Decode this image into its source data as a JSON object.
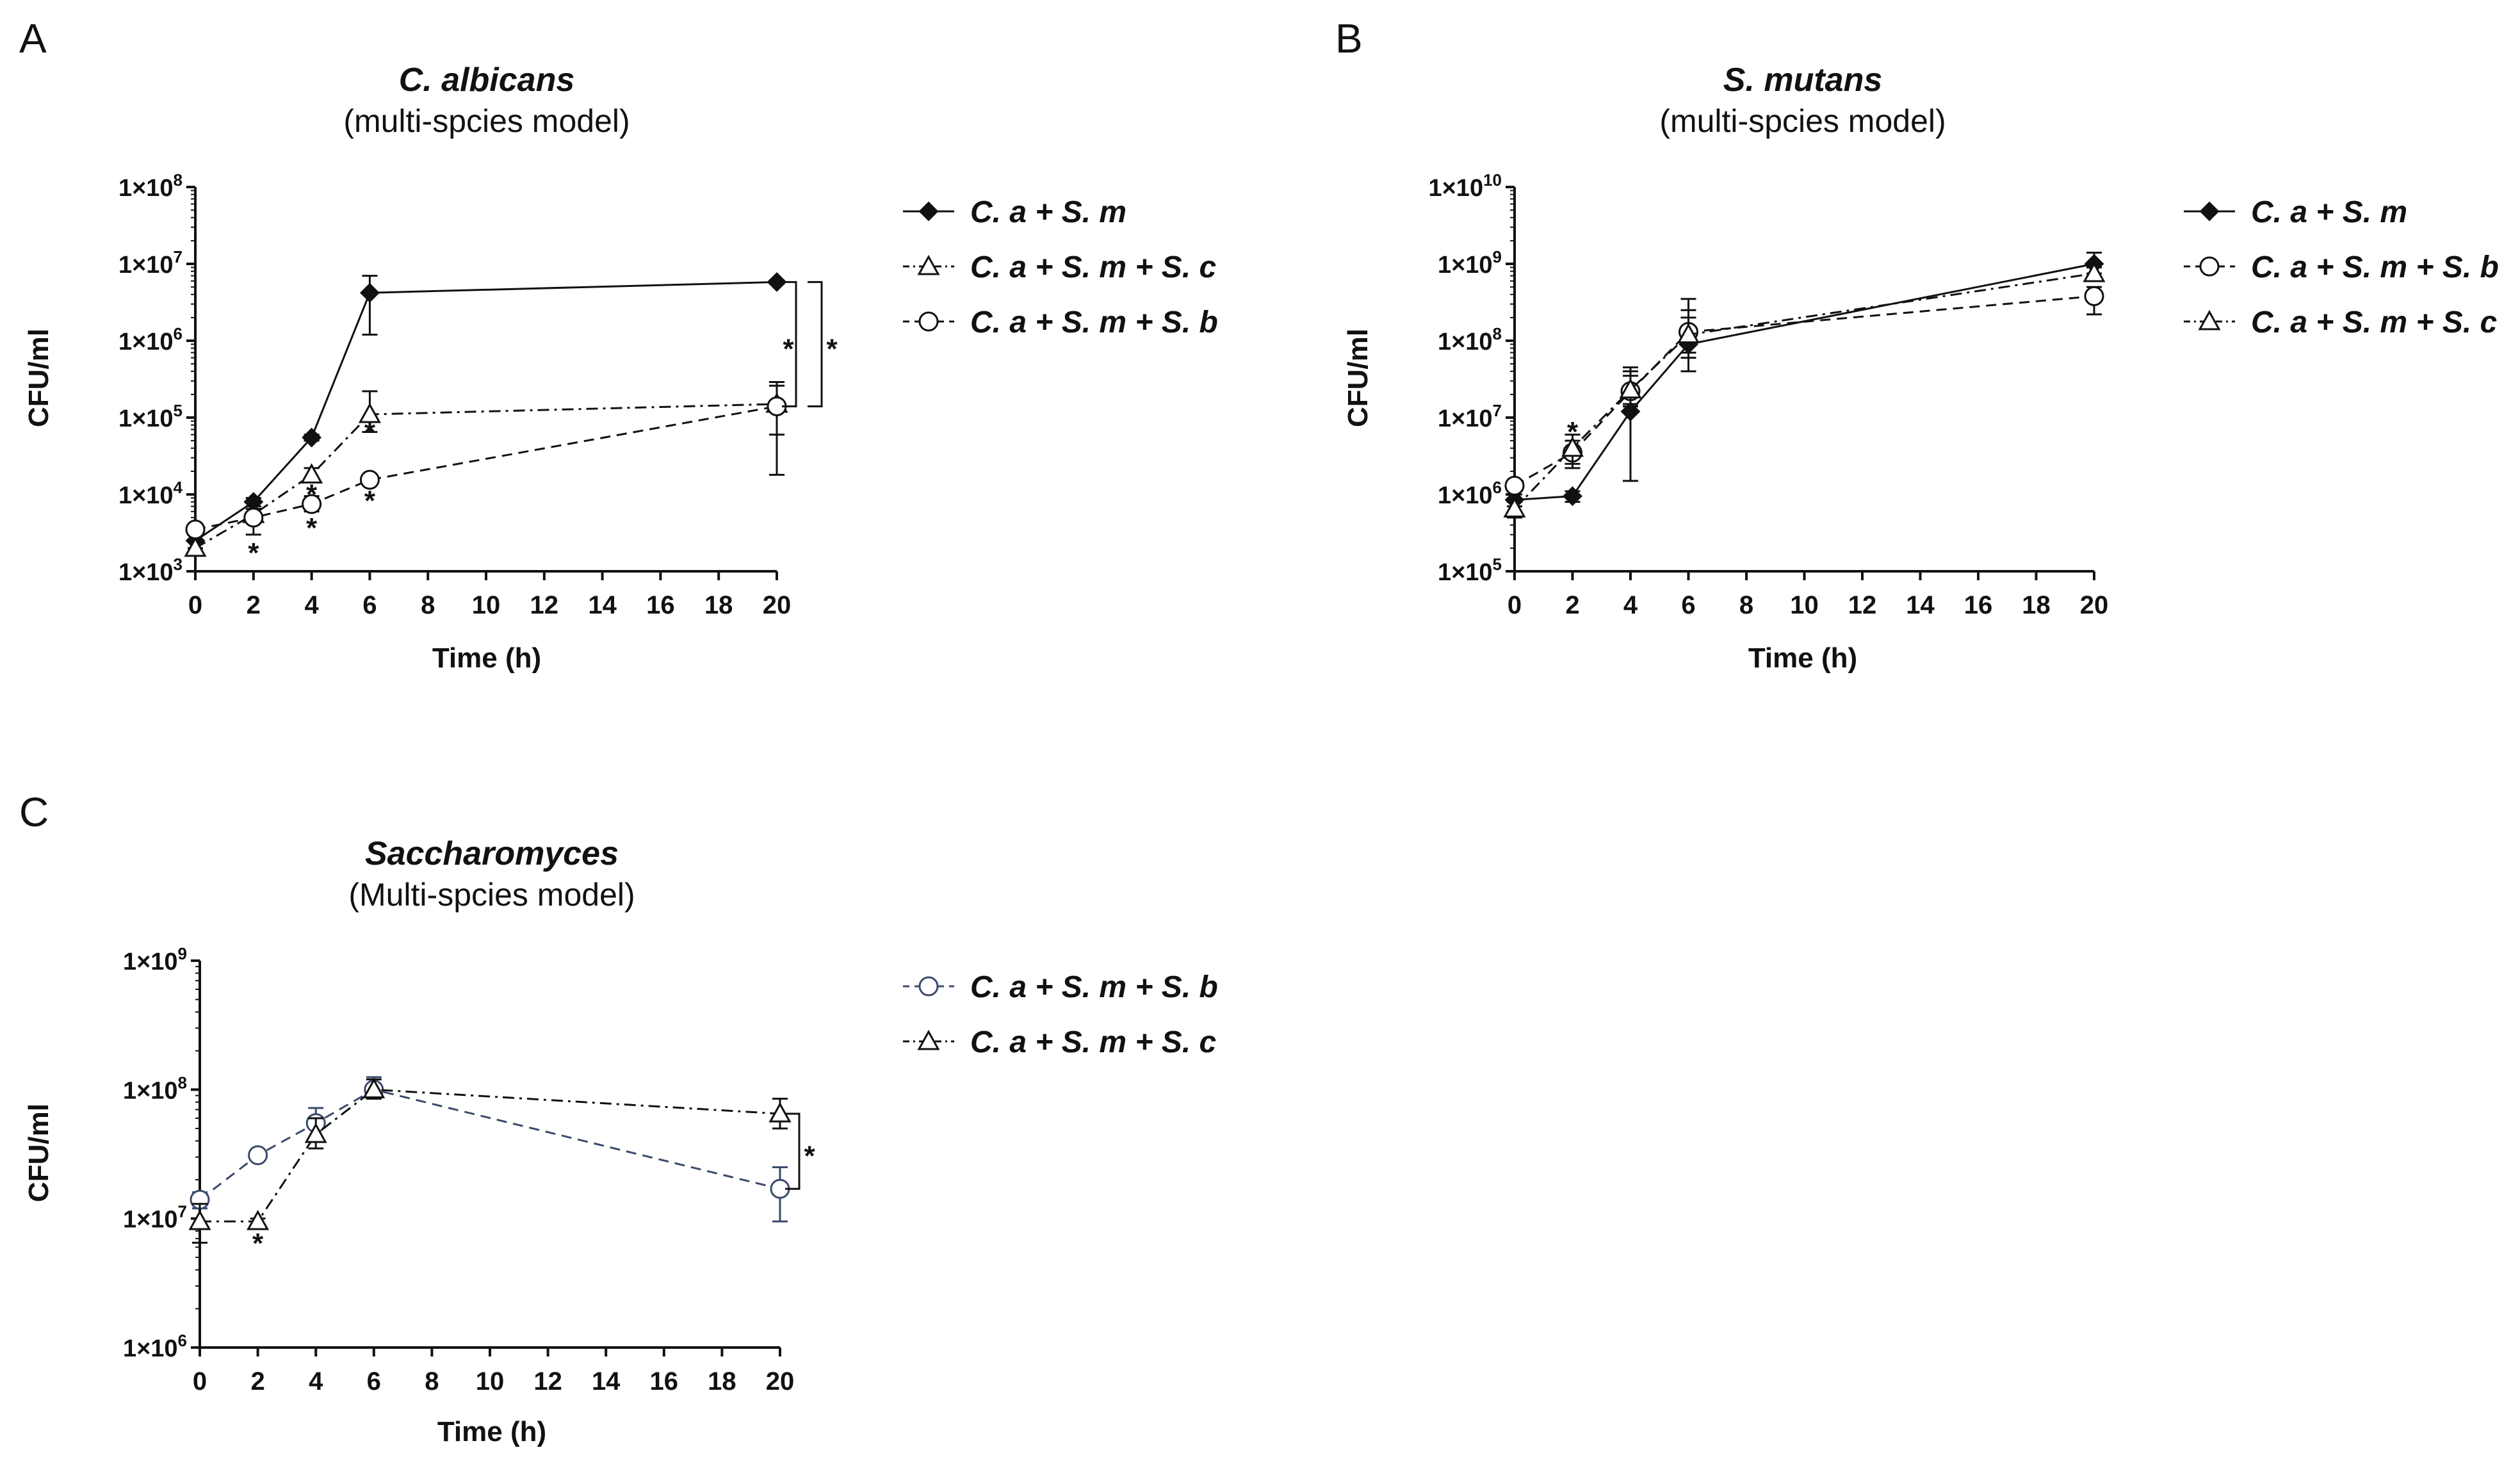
{
  "chart_data": [
    {
      "panel": "A",
      "type": "line",
      "title": "C. albicans",
      "subtitle": "(multi-spcies model)",
      "xlabel": "Time (h)",
      "ylabel": "CFU/ml",
      "yscale": "log",
      "ylim": [
        1000,
        100000000
      ],
      "yticks": [
        {
          "value": 1000,
          "label": "1×10",
          "exp": "3"
        },
        {
          "value": 10000,
          "label": "1×10",
          "exp": "4"
        },
        {
          "value": 100000,
          "label": "1×10",
          "exp": "5"
        },
        {
          "value": 1000000,
          "label": "1×10",
          "exp": "6"
        },
        {
          "value": 10000000,
          "label": "1×10",
          "exp": "7"
        },
        {
          "value": 100000000,
          "label": "1×10",
          "exp": "8"
        }
      ],
      "xlim": [
        0,
        20
      ],
      "xticks": [
        0,
        2,
        4,
        6,
        8,
        10,
        12,
        14,
        16,
        18,
        20
      ],
      "x": [
        0,
        2,
        4,
        6,
        20
      ],
      "series": [
        {
          "name": "C. a + S. m",
          "marker": "diamond",
          "dash": "solid",
          "values": [
            2500,
            8000,
            55000,
            4200000,
            5800000
          ],
          "err_low": [
            2000,
            7000,
            50000,
            1200000,
            5500000
          ],
          "err_high": [
            3000,
            9000,
            60000,
            7000000,
            6100000
          ]
        },
        {
          "name": "C. a + S. m + S. c",
          "marker": "triangle",
          "dash": "dashdot",
          "values": [
            2000,
            5500,
            18000,
            110000,
            150000
          ],
          "err_low": [
            1600,
            4500,
            15000,
            65000,
            60000
          ],
          "err_high": [
            2500,
            6500,
            22000,
            220000,
            260000
          ]
        },
        {
          "name": "C. a + S. m + S. b",
          "marker": "circle",
          "dash": "dashed",
          "values": [
            3500,
            5000,
            7500,
            15500,
            140000
          ],
          "err_low": [
            3000,
            3000,
            6000,
            14000,
            18000
          ],
          "err_high": [
            4000,
            7000,
            9500,
            17000,
            290000
          ]
        }
      ],
      "annotations": [
        {
          "text": "*",
          "x": 2,
          "value": 2000
        },
        {
          "text": "*",
          "x": 4,
          "value": 11500
        },
        {
          "text": "*",
          "x": 4,
          "value": 4200
        },
        {
          "text": "*",
          "x": 6,
          "value": 75000
        },
        {
          "text": "*",
          "x": 6,
          "value": 9500
        }
      ],
      "brackets": [
        {
          "from": 5800000,
          "to": 140000,
          "label": "*",
          "level": 1
        },
        {
          "from": 5800000,
          "to": 140000,
          "label": "*",
          "level": 2
        }
      ]
    },
    {
      "panel": "B",
      "type": "line",
      "title": "S. mutans",
      "subtitle": "(multi-spcies model)",
      "xlabel": "Time (h)",
      "ylabel": "CFU/ml",
      "yscale": "log",
      "ylim": [
        100000,
        10000000000
      ],
      "yticks": [
        {
          "value": 100000,
          "label": "1×10",
          "exp": "5"
        },
        {
          "value": 1000000,
          "label": "1×10",
          "exp": "6"
        },
        {
          "value": 10000000,
          "label": "1×10",
          "exp": "7"
        },
        {
          "value": 100000000,
          "label": "1×10",
          "exp": "8"
        },
        {
          "value": 1000000000,
          "label": "1×10",
          "exp": "9"
        },
        {
          "value": 10000000000,
          "label": "1×10",
          "exp": "10"
        }
      ],
      "xlim": [
        0,
        20
      ],
      "xticks": [
        0,
        2,
        4,
        6,
        8,
        10,
        12,
        14,
        16,
        18,
        20
      ],
      "x": [
        0,
        2,
        4,
        6,
        20
      ],
      "series": [
        {
          "name": "C. a + S. m",
          "marker": "diamond",
          "dash": "solid",
          "values": [
            850000,
            950000,
            12000000,
            90000000,
            1000000000
          ],
          "err_low": [
            700000,
            800000,
            1500000,
            40000000,
            750000000
          ],
          "err_high": [
            1000000,
            1100000,
            40000000,
            200000000,
            1400000000
          ]
        },
        {
          "name": "C. a + S. m + S. b",
          "marker": "circle",
          "dash": "dashed",
          "values": [
            1300000,
            3500000,
            22000000,
            130000000,
            380000000
          ],
          "err_low": [
            1100000,
            2200000,
            14000000,
            60000000,
            220000000
          ],
          "err_high": [
            1500000,
            5000000,
            45000000,
            350000000,
            500000000
          ]
        },
        {
          "name": "C. a + S. m + S. c",
          "marker": "triangle",
          "dash": "dashdot",
          "values": [
            650000,
            4000000,
            23000000,
            120000000,
            750000000
          ],
          "err_low": [
            500000,
            2500000,
            15000000,
            70000000,
            600000000
          ],
          "err_high": [
            800000,
            6000000,
            35000000,
            250000000,
            900000000
          ]
        }
      ],
      "annotations": [
        {
          "text": "*",
          "x": 2,
          "value": 7500000
        }
      ],
      "brackets": []
    },
    {
      "panel": "C",
      "type": "line",
      "title": "Saccharomyces",
      "subtitle": "(Multi-spcies model)",
      "xlabel": "Time (h)",
      "ylabel": "CFU/ml",
      "yscale": "log",
      "ylim": [
        1000000,
        1000000000
      ],
      "yticks": [
        {
          "value": 1000000,
          "label": "1×10",
          "exp": "6"
        },
        {
          "value": 10000000,
          "label": "1×10",
          "exp": "7"
        },
        {
          "value": 100000000,
          "label": "1×10",
          "exp": "8"
        },
        {
          "value": 1000000000,
          "label": "1×10",
          "exp": "9"
        }
      ],
      "xlim": [
        0,
        20
      ],
      "xticks": [
        0,
        2,
        4,
        6,
        8,
        10,
        12,
        14,
        16,
        18,
        20
      ],
      "x": [
        0,
        2,
        4,
        6,
        20
      ],
      "series": [
        {
          "name": "C. a + S. m + S. b",
          "marker": "circle",
          "dash": "dashed",
          "color": "#3b4a6b",
          "values": [
            14000000,
            31000000,
            55000000,
            100000000,
            17000000
          ],
          "err_low": [
            12000000,
            30000000,
            40000000,
            85000000,
            9500000
          ],
          "err_high": [
            16000000,
            32000000,
            72000000,
            125000000,
            25000000
          ]
        },
        {
          "name": "C. a + S. m + S. c",
          "marker": "triangle",
          "dash": "dashdot",
          "values": [
            9500000,
            9500000,
            45000000,
            100000000,
            65000000
          ],
          "err_low": [
            6500000,
            9000000,
            35000000,
            85000000,
            50000000
          ],
          "err_high": [
            13000000,
            10000000,
            60000000,
            120000000,
            85000000
          ]
        }
      ],
      "annotations": [
        {
          "text": "*",
          "x": 2,
          "value": 7000000
        }
      ],
      "brackets": [
        {
          "from": 65000000,
          "to": 17000000,
          "label": "*",
          "level": 1
        }
      ]
    }
  ],
  "colors": {
    "ink": "#111111",
    "navy": "#3b4a6b"
  }
}
